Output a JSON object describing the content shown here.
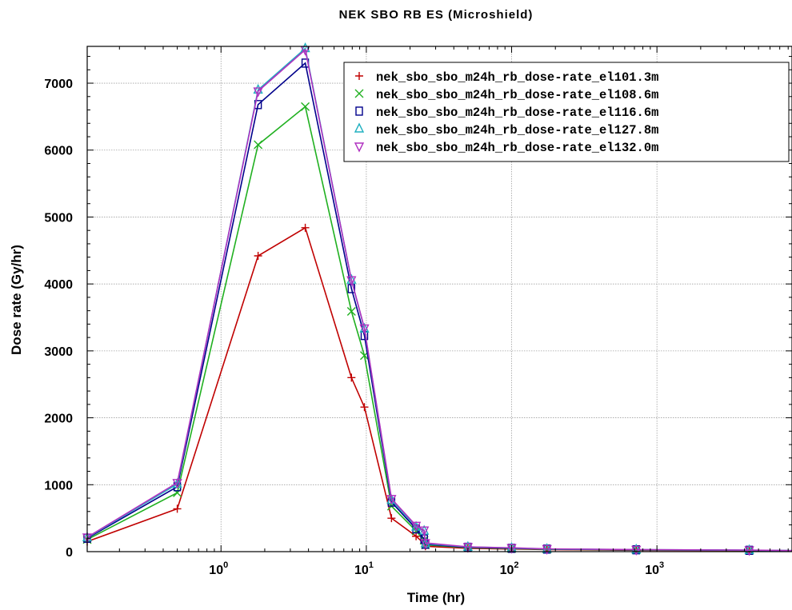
{
  "chart_data": {
    "type": "line",
    "title": "NEK SBO RB ES (Microshield)",
    "xlabel": "Time (hr)",
    "ylabel": "Dose rate (Gy/hr)",
    "xscale": "log",
    "xlim": [
      0.12,
      8500
    ],
    "ylim": [
      0,
      7550
    ],
    "x_ticks": [
      {
        "base": "10",
        "exp": "0",
        "value": 1
      },
      {
        "base": "10",
        "exp": "1",
        "value": 10
      },
      {
        "base": "10",
        "exp": "2",
        "value": 100
      },
      {
        "base": "10",
        "exp": "3",
        "value": 1000
      }
    ],
    "y_ticks": [
      0,
      1000,
      2000,
      3000,
      4000,
      5000,
      6000,
      7000
    ],
    "grid": true,
    "legend_position": "top-right",
    "series": [
      {
        "name": "nek_sbo_sbo_m24h_rb_dose-rate_el101.3m",
        "color": "#c00000",
        "marker": "plus",
        "x": [
          0.12,
          0.5,
          1.8,
          3.8,
          7.9,
          9.7,
          14.9,
          22,
          25,
          25.5,
          50,
          100,
          175,
          720,
          4320,
          8500
        ],
        "y": [
          150,
          640,
          4420,
          4840,
          2600,
          2160,
          500,
          230,
          120,
          80,
          50,
          40,
          30,
          20,
          15,
          10
        ]
      },
      {
        "name": "nek_sbo_sbo_m24h_rb_dose-rate_el108.6m",
        "color": "#20b020",
        "marker": "x",
        "x": [
          0.12,
          0.5,
          1.8,
          3.8,
          7.9,
          9.7,
          14.9,
          22,
          25,
          25.5,
          50,
          100,
          175,
          720,
          4320,
          8500
        ],
        "y": [
          180,
          880,
          6080,
          6650,
          3590,
          2930,
          680,
          310,
          170,
          100,
          60,
          45,
          35,
          25,
          18,
          12
        ]
      },
      {
        "name": "nek_sbo_sbo_m24h_rb_dose-rate_el116.6m",
        "color": "#00008b",
        "marker": "square",
        "x": [
          0.12,
          0.5,
          1.8,
          3.8,
          7.9,
          9.7,
          14.9,
          22,
          25,
          25.5,
          50,
          100,
          175,
          720,
          4320,
          8500
        ],
        "y": [
          200,
          970,
          6680,
          7300,
          3930,
          3230,
          740,
          340,
          190,
          110,
          65,
          50,
          38,
          28,
          20,
          14
        ]
      },
      {
        "name": "nek_sbo_sbo_m24h_rb_dose-rate_el127.8m",
        "color": "#20b0c0",
        "marker": "triangle-up",
        "x": [
          0.12,
          0.5,
          1.8,
          3.8,
          7.9,
          9.7,
          14.9,
          22,
          25,
          25.5,
          50,
          100,
          175,
          720,
          4320,
          8500
        ],
        "y": [
          210,
          1010,
          6900,
          7520,
          4060,
          3330,
          770,
          370,
          310,
          120,
          70,
          55,
          40,
          30,
          22,
          15
        ]
      },
      {
        "name": "nek_sbo_sbo_m24h_rb_dose-rate_el132.0m",
        "color": "#b030c0",
        "marker": "triangle-down",
        "x": [
          0.12,
          0.5,
          1.8,
          3.8,
          7.9,
          9.7,
          14.9,
          22,
          25,
          25.5,
          50,
          100,
          175,
          720,
          4320,
          8500
        ],
        "y": [
          215,
          1030,
          6880,
          7500,
          4060,
          3340,
          790,
          390,
          320,
          130,
          72,
          57,
          42,
          31,
          23,
          16
        ]
      }
    ]
  }
}
